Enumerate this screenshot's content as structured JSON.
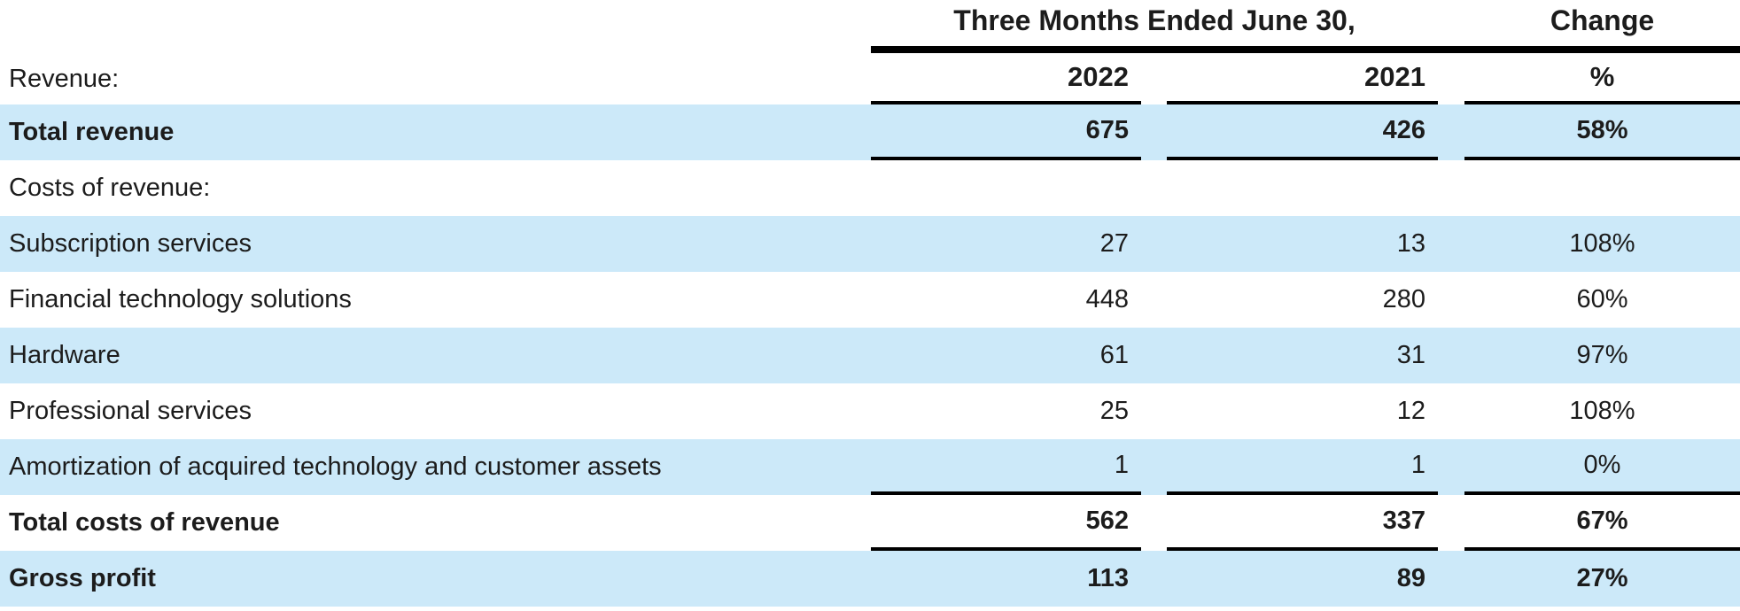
{
  "table": {
    "title_region": {
      "period_header": "Three Months Ended June 30,",
      "change_header": "Change"
    },
    "column_headers": {
      "section_label": "Revenue:",
      "year_1": "2022",
      "year_2": "2021",
      "pct": "%"
    },
    "rows": [
      {
        "label": "Total revenue",
        "v2022": "675",
        "v2021": "426",
        "pct": "58%"
      },
      {
        "label": "Costs of revenue:",
        "v2022": "",
        "v2021": "",
        "pct": ""
      },
      {
        "label": "Subscription services",
        "v2022": "27",
        "v2021": "13",
        "pct": "108%"
      },
      {
        "label": "Financial technology solutions",
        "v2022": "448",
        "v2021": "280",
        "pct": "60%"
      },
      {
        "label": "Hardware",
        "v2022": "61",
        "v2021": "31",
        "pct": "97%"
      },
      {
        "label": "Professional services",
        "v2022": "25",
        "v2021": "12",
        "pct": "108%"
      },
      {
        "label": "Amortization of acquired technology and customer assets",
        "v2022": "1",
        "v2021": "1",
        "pct": "0%"
      },
      {
        "label": "Total costs of revenue",
        "v2022": "562",
        "v2021": "337",
        "pct": "67%"
      },
      {
        "label": "Gross profit",
        "v2022": "113",
        "v2021": "89",
        "pct": "27%"
      }
    ],
    "colors": {
      "shaded_row": "#cce9f9",
      "rule": "#000000",
      "text": "#1c1c1c"
    }
  }
}
